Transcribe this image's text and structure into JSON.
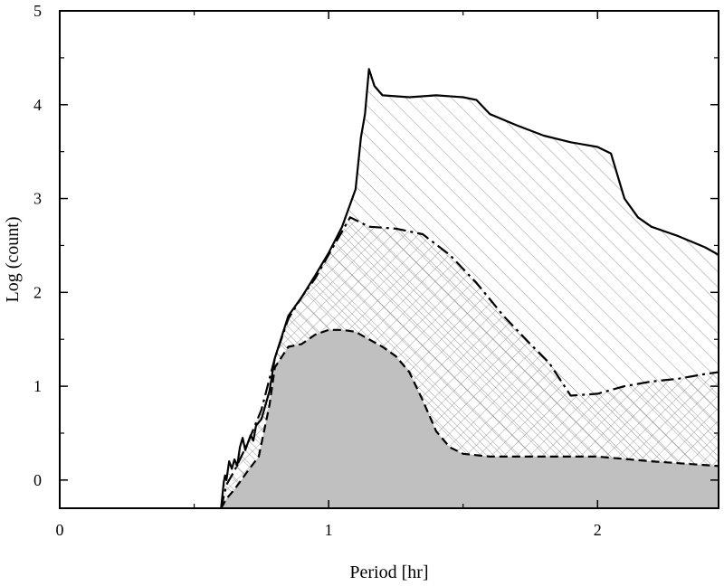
{
  "chart_data": {
    "type": "area",
    "xlabel": "Period [hr]",
    "ylabel": "Log (count)",
    "xlim": [
      0,
      2.45
    ],
    "ylim": [
      -0.3,
      5
    ],
    "xticks": [
      0,
      1,
      2
    ],
    "yticks": [
      0,
      1,
      2,
      3,
      4,
      5
    ],
    "grid": false,
    "legend": "none",
    "series": [
      {
        "line_style": "solid",
        "fill": "diagonal-hatch",
        "color": "#000000",
        "points": [
          [
            0.6,
            -0.3
          ],
          [
            0.61,
            -0.02
          ],
          [
            0.615,
            0.05
          ],
          [
            0.62,
            0.0
          ],
          [
            0.63,
            0.2
          ],
          [
            0.64,
            0.12
          ],
          [
            0.65,
            0.22
          ],
          [
            0.66,
            0.15
          ],
          [
            0.67,
            0.35
          ],
          [
            0.68,
            0.45
          ],
          [
            0.69,
            0.32
          ],
          [
            0.7,
            0.4
          ],
          [
            0.71,
            0.48
          ],
          [
            0.72,
            0.42
          ],
          [
            0.73,
            0.58
          ],
          [
            0.75,
            0.65
          ],
          [
            0.78,
            0.95
          ],
          [
            0.8,
            1.3
          ],
          [
            0.85,
            1.75
          ],
          [
            0.9,
            1.95
          ],
          [
            0.95,
            2.18
          ],
          [
            1.0,
            2.42
          ],
          [
            1.05,
            2.7
          ],
          [
            1.1,
            3.1
          ],
          [
            1.12,
            3.65
          ],
          [
            1.135,
            3.9
          ],
          [
            1.15,
            4.38
          ],
          [
            1.17,
            4.2
          ],
          [
            1.2,
            4.1
          ],
          [
            1.3,
            4.08
          ],
          [
            1.4,
            4.1
          ],
          [
            1.5,
            4.08
          ],
          [
            1.55,
            4.05
          ],
          [
            1.6,
            3.9
          ],
          [
            1.7,
            3.78
          ],
          [
            1.8,
            3.67
          ],
          [
            1.9,
            3.6
          ],
          [
            2.0,
            3.55
          ],
          [
            2.05,
            3.48
          ],
          [
            2.1,
            3.0
          ],
          [
            2.15,
            2.8
          ],
          [
            2.2,
            2.7
          ],
          [
            2.3,
            2.6
          ],
          [
            2.4,
            2.48
          ],
          [
            2.45,
            2.4
          ]
        ]
      },
      {
        "line_style": "dash-dot",
        "fill": "cross-hatch",
        "color": "#000000",
        "points": [
          [
            0.6,
            -0.3
          ],
          [
            0.62,
            -0.05
          ],
          [
            0.65,
            0.1
          ],
          [
            0.7,
            0.4
          ],
          [
            0.75,
            0.75
          ],
          [
            0.8,
            1.3
          ],
          [
            0.85,
            1.72
          ],
          [
            0.9,
            1.95
          ],
          [
            0.95,
            2.15
          ],
          [
            1.0,
            2.4
          ],
          [
            1.05,
            2.65
          ],
          [
            1.08,
            2.8
          ],
          [
            1.15,
            2.7
          ],
          [
            1.25,
            2.68
          ],
          [
            1.35,
            2.62
          ],
          [
            1.45,
            2.4
          ],
          [
            1.55,
            2.1
          ],
          [
            1.65,
            1.75
          ],
          [
            1.75,
            1.45
          ],
          [
            1.82,
            1.25
          ],
          [
            1.9,
            0.9
          ],
          [
            2.0,
            0.92
          ],
          [
            2.1,
            1.0
          ],
          [
            2.2,
            1.05
          ],
          [
            2.3,
            1.08
          ],
          [
            2.4,
            1.13
          ],
          [
            2.45,
            1.15
          ]
        ]
      },
      {
        "line_style": "dashed",
        "fill": "gray",
        "color": "#c0c0c0",
        "points": [
          [
            0.6,
            -0.3
          ],
          [
            0.62,
            -0.2
          ],
          [
            0.65,
            -0.1
          ],
          [
            0.7,
            0.1
          ],
          [
            0.74,
            0.25
          ],
          [
            0.78,
            0.8
          ],
          [
            0.8,
            1.2
          ],
          [
            0.85,
            1.42
          ],
          [
            0.9,
            1.45
          ],
          [
            0.95,
            1.55
          ],
          [
            1.0,
            1.6
          ],
          [
            1.05,
            1.6
          ],
          [
            1.1,
            1.58
          ],
          [
            1.15,
            1.5
          ],
          [
            1.2,
            1.42
          ],
          [
            1.25,
            1.32
          ],
          [
            1.3,
            1.15
          ],
          [
            1.35,
            0.85
          ],
          [
            1.4,
            0.52
          ],
          [
            1.45,
            0.35
          ],
          [
            1.5,
            0.28
          ],
          [
            1.6,
            0.25
          ],
          [
            1.8,
            0.25
          ],
          [
            2.0,
            0.25
          ],
          [
            2.2,
            0.2
          ],
          [
            2.3,
            0.18
          ],
          [
            2.45,
            0.15
          ]
        ]
      }
    ]
  }
}
